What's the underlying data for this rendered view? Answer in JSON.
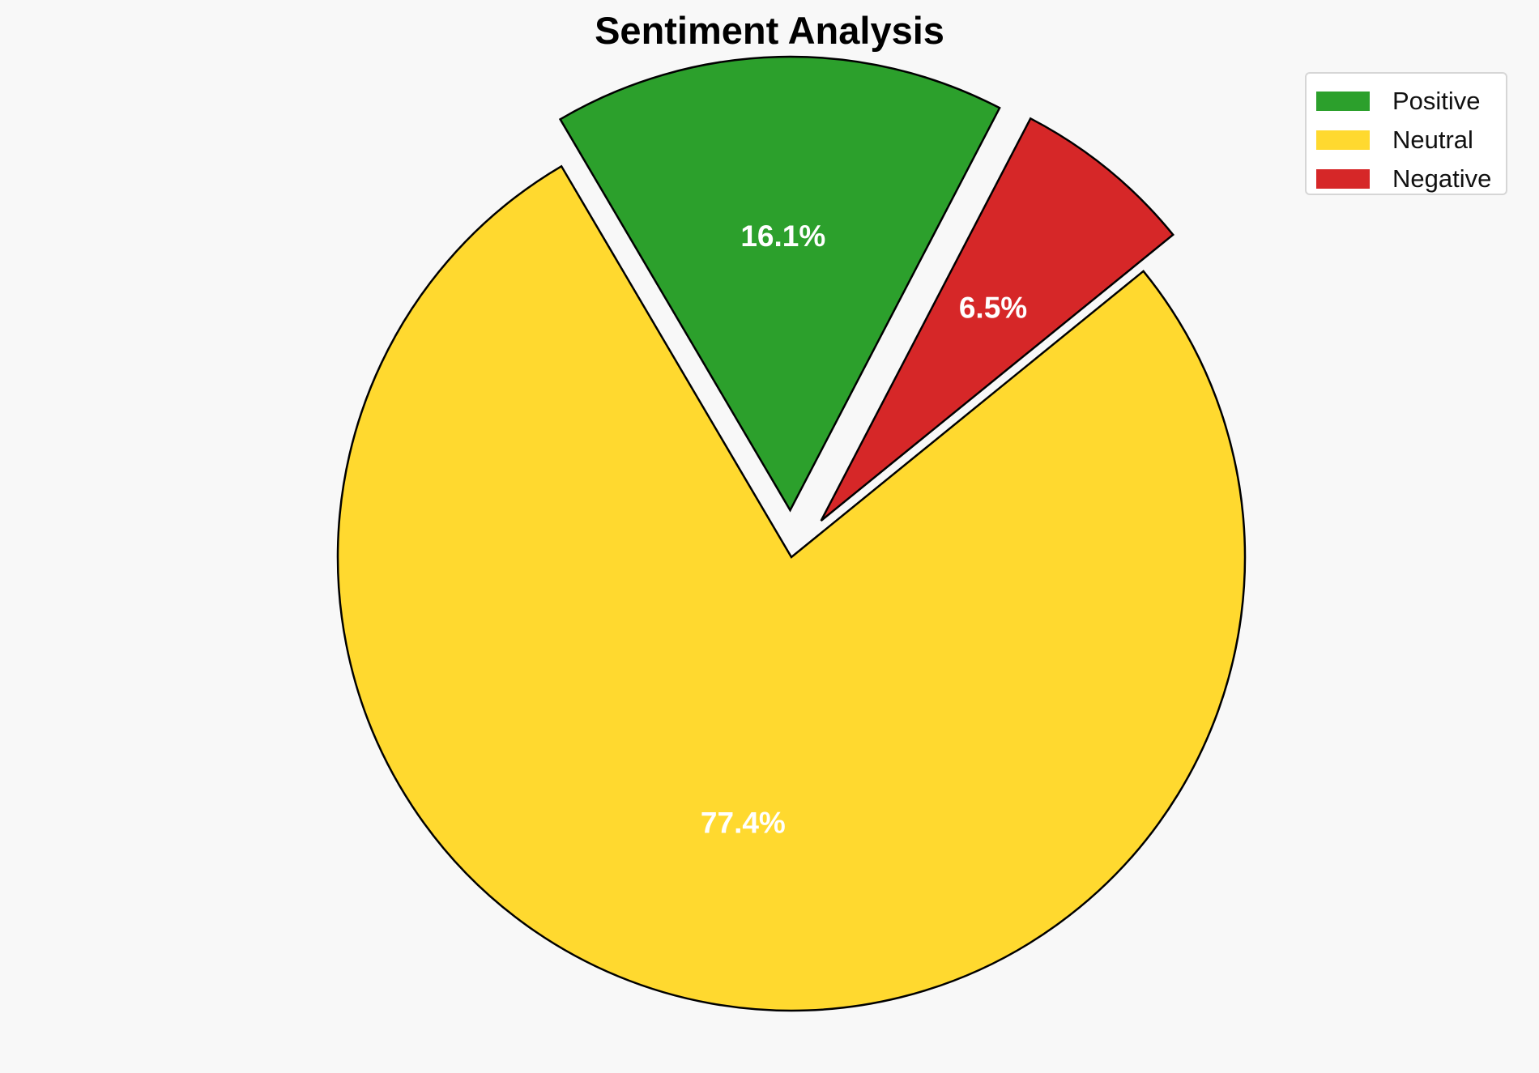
{
  "chart_data": {
    "type": "pie",
    "title": "Sentiment Analysis",
    "slices": [
      {
        "name": "Positive",
        "value": 16.1,
        "label": "16.1%",
        "color": "#2ca02c",
        "exploded": true
      },
      {
        "name": "Neutral",
        "value": 77.4,
        "label": "77.4%",
        "color": "#ffd92f",
        "exploded": false
      },
      {
        "name": "Negative",
        "value": 6.5,
        "label": "6.5%",
        "color": "#d62728",
        "exploded": true
      }
    ],
    "legend": {
      "placement": "top-right",
      "entries": [
        "Positive",
        "Neutral",
        "Negative"
      ]
    }
  }
}
